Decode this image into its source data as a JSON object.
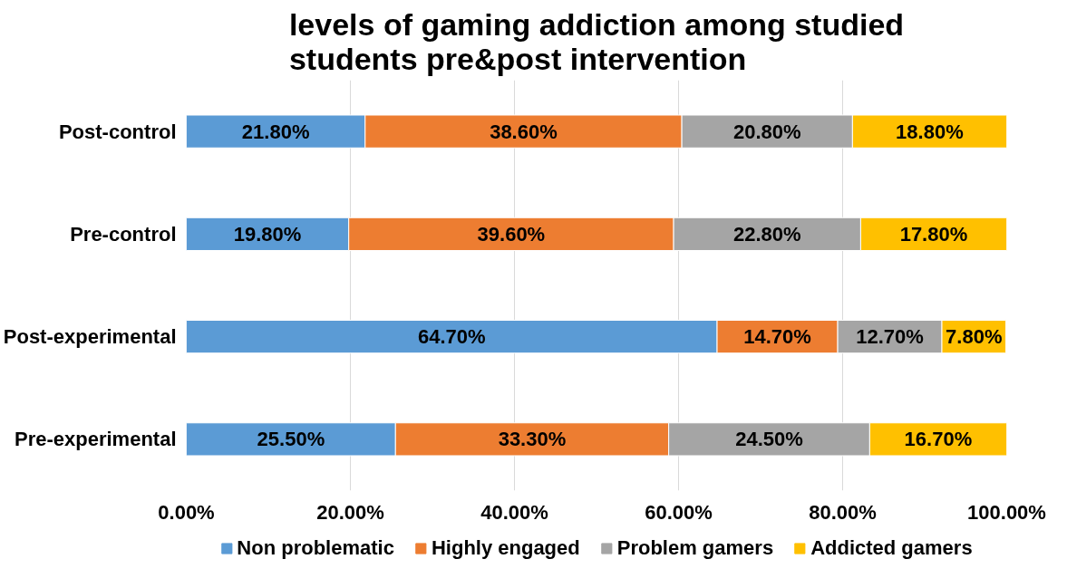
{
  "chart_data": {
    "type": "bar",
    "orientation": "horizontal",
    "stacked": true,
    "title": "levels of gaming addiction among studied students pre&post intervention",
    "categories": [
      "Post-control",
      "Pre-control",
      "Post-experimental",
      "Pre-experimental"
    ],
    "series": [
      {
        "name": "Non problematic",
        "color": "#5b9bd5",
        "values": [
          21.8,
          19.8,
          64.7,
          25.5
        ],
        "value_labels": [
          "21.80%",
          "19.80%",
          "64.70%",
          "25.50%"
        ]
      },
      {
        "name": "Highly engaged",
        "color": "#ed7d31",
        "values": [
          38.6,
          39.6,
          14.7,
          33.3
        ],
        "value_labels": [
          "38.60%",
          "39.60%",
          "14.70%",
          "33.30%"
        ]
      },
      {
        "name": "Problem gamers",
        "color": "#a5a5a5",
        "values": [
          20.8,
          22.8,
          12.7,
          24.5
        ],
        "value_labels": [
          "20.80%",
          "22.80%",
          "12.70%",
          "24.50%"
        ]
      },
      {
        "name": "Addicted gamers",
        "color": "#ffc000",
        "values": [
          18.8,
          17.8,
          7.8,
          16.7
        ],
        "value_labels": [
          "18.80%",
          "17.80%",
          "7.80%",
          "16.70%"
        ]
      }
    ],
    "xlim": [
      0,
      100
    ],
    "xticks": [
      {
        "value": 0,
        "label": "0.00%"
      },
      {
        "value": 20,
        "label": "20.00%"
      },
      {
        "value": 40,
        "label": "40.00%"
      },
      {
        "value": 60,
        "label": "60.00%"
      },
      {
        "value": 80,
        "label": "80.00%"
      },
      {
        "value": 100,
        "label": "100.00%"
      }
    ],
    "grid": "x",
    "legend": "bottom"
  }
}
